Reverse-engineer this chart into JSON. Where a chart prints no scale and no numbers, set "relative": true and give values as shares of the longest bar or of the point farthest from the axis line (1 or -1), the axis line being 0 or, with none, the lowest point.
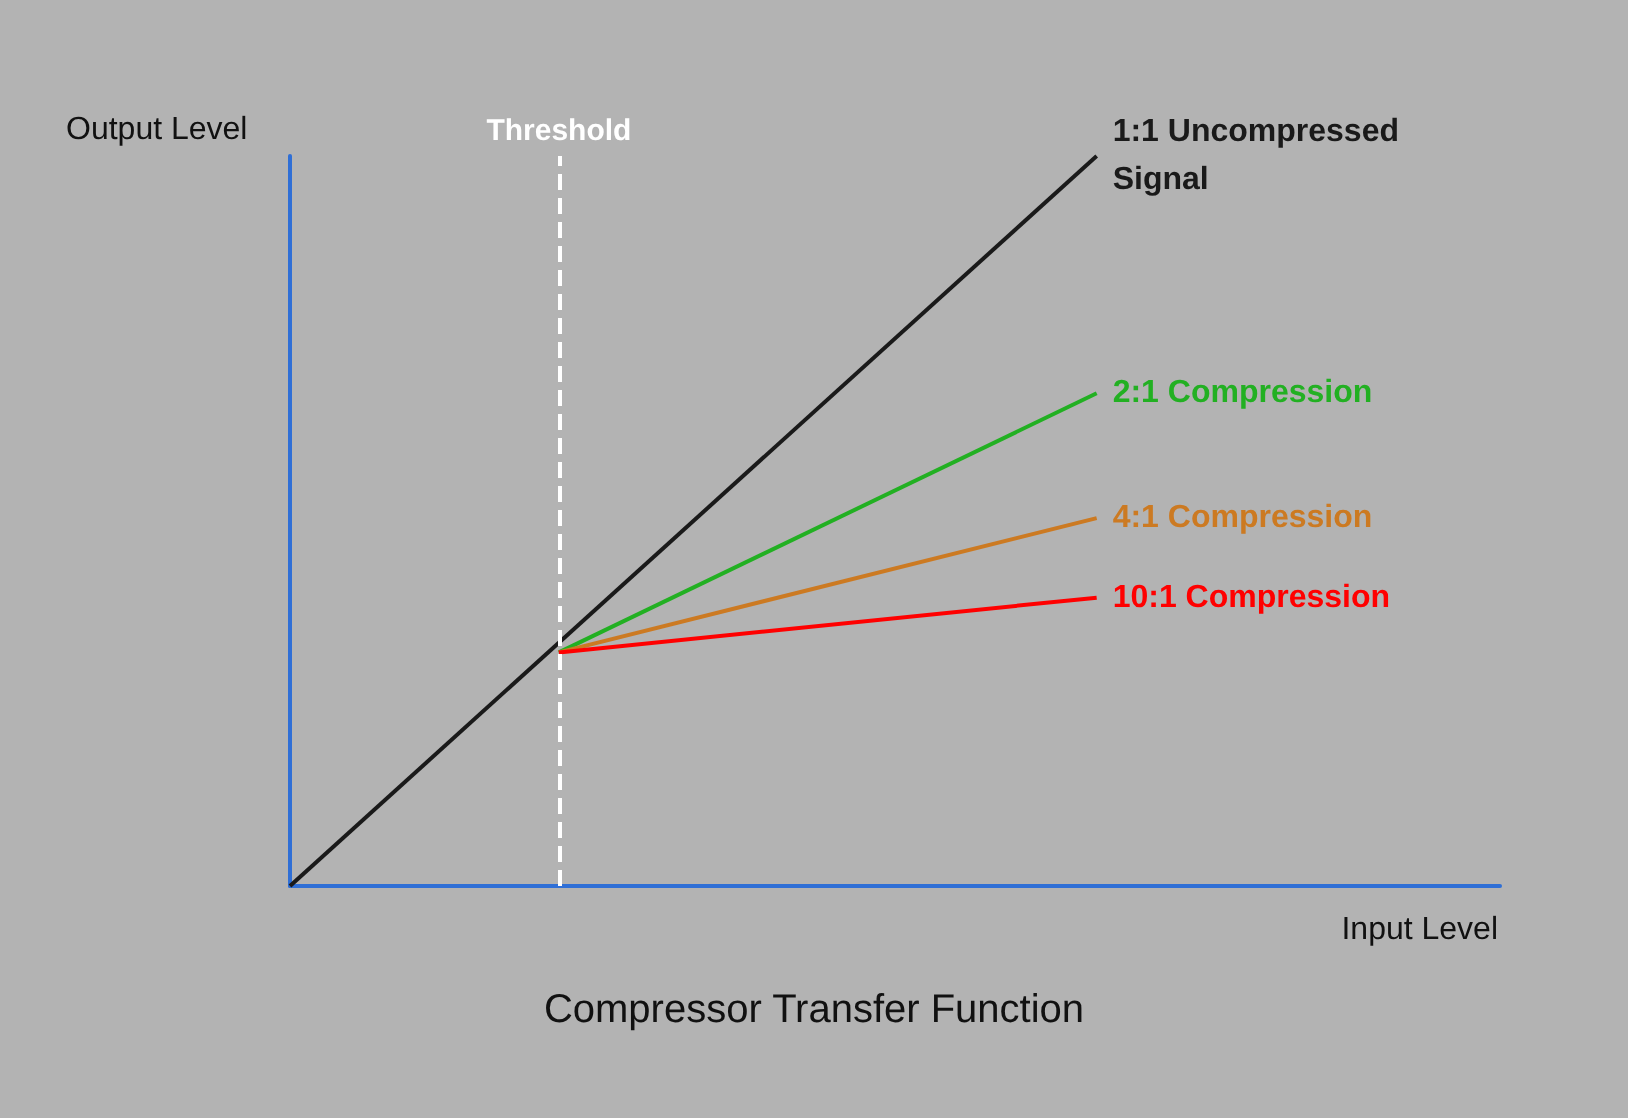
{
  "chart_data": {
    "type": "line",
    "title": "Compressor Transfer Function",
    "xlabel": "Input Level",
    "ylabel": "Output Level",
    "relative": true,
    "categories": [
      null,
      null,
      null,
      null,
      null,
      null,
      null,
      null,
      null,
      null
    ],
    "tick_labels": false,
    "grid": false,
    "legend": false,
    "marker": "none",
    "line_style": "solid",
    "series": [
      {
        "name": "1:1 Uncompressed Signal",
        "color": "#1a1a1a",
        "values": [
          0,
          null,
          null,
          null,
          null,
          null,
          1,
          null,
          null,
          null
        ]
      },
      {
        "name": "2:1 Compression",
        "color": "#22b022",
        "values": [
          null,
          null,
          0.32,
          null,
          null,
          null,
          0.675,
          null,
          null,
          null
        ]
      },
      {
        "name": "4:1 Compression",
        "color": "#cc7a22",
        "values": [
          null,
          null,
          0.32,
          null,
          null,
          null,
          0.504,
          null,
          null,
          null
        ]
      },
      {
        "name": "10:1 Compression",
        "color": "#ff0000",
        "values": [
          null,
          null,
          0.32,
          null,
          null,
          null,
          0.395,
          null,
          null,
          null
        ]
      }
    ],
    "annotations": [
      "Threshold"
    ]
  }
}
